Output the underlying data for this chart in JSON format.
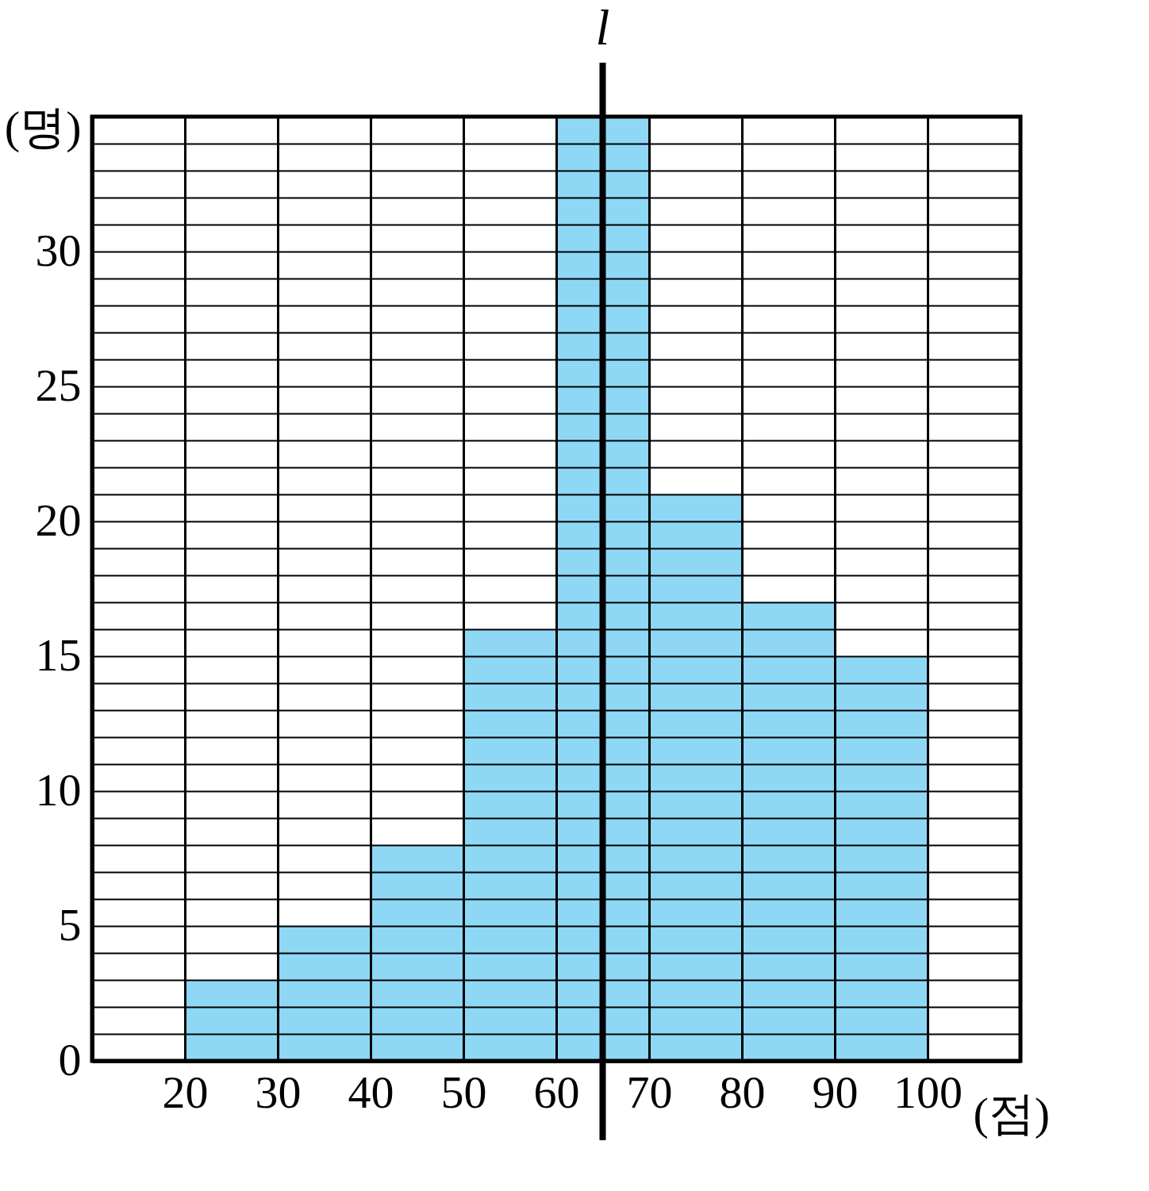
{
  "chart_data": {
    "type": "histogram",
    "xlabel": "(점)",
    "ylabel": "(명)",
    "bins": [
      20,
      30,
      40,
      50,
      60,
      70,
      80,
      90,
      100
    ],
    "values": [
      3,
      5,
      8,
      16,
      35,
      21,
      17,
      15
    ],
    "color": "#8fd8f5",
    "xlim": [
      10,
      110
    ],
    "xticks": [
      {
        "value": 10,
        "label": null
      },
      20,
      30,
      40,
      50,
      60,
      70,
      80,
      90,
      100,
      {
        "value": 110,
        "label": null
      }
    ],
    "ylim": [
      0,
      35
    ],
    "yticks": [
      0,
      {
        "value": 1,
        "label": null
      },
      {
        "value": 2,
        "label": null
      },
      {
        "value": 3,
        "label": null
      },
      {
        "value": 4,
        "label": null
      },
      5,
      {
        "value": 6,
        "label": null
      },
      {
        "value": 7,
        "label": null
      },
      {
        "value": 8,
        "label": null
      },
      {
        "value": 9,
        "label": null
      },
      10,
      {
        "value": 11,
        "label": null
      },
      {
        "value": 12,
        "label": null
      },
      {
        "value": 13,
        "label": null
      },
      {
        "value": 14,
        "label": null
      },
      15,
      {
        "value": 16,
        "label": null
      },
      {
        "value": 17,
        "label": null
      },
      {
        "value": 18,
        "label": null
      },
      {
        "value": 19,
        "label": null
      },
      20,
      {
        "value": 21,
        "label": null
      },
      {
        "value": 22,
        "label": null
      },
      {
        "value": 23,
        "label": null
      },
      {
        "value": 24,
        "label": null
      },
      25,
      {
        "value": 26,
        "label": null
      },
      {
        "value": 27,
        "label": null
      },
      {
        "value": 28,
        "label": null
      },
      {
        "value": 29,
        "label": null
      },
      30,
      {
        "value": 31,
        "label": null
      },
      {
        "value": 32,
        "label": null
      },
      {
        "value": 33,
        "label": null
      },
      {
        "value": 34,
        "label": null
      },
      {
        "value": 35,
        "label": null
      }
    ],
    "grid": true,
    "ref_lines": [
      {
        "axis": "x",
        "value": 65,
        "label": "l"
      }
    ]
  }
}
